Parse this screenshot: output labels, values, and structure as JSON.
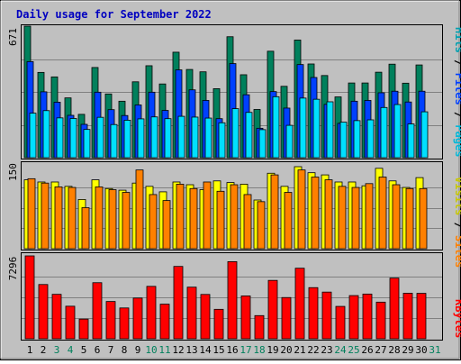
{
  "chart_data": [
    {
      "type": "bar",
      "panel": "pages_files_hits",
      "title": "Daily usage for September 2022",
      "ylabel_parts": [
        "Pages",
        " / ",
        "Files",
        " / ",
        "Hits"
      ],
      "ymax_label": "671",
      "ylim": [
        0,
        671
      ],
      "categories": [
        "1",
        "2",
        "3",
        "4",
        "5",
        "6",
        "7",
        "8",
        "9",
        "10",
        "11",
        "12",
        "13",
        "14",
        "15",
        "16",
        "17",
        "18",
        "19",
        "20",
        "21",
        "22",
        "23",
        "24",
        "25",
        "26",
        "27",
        "28",
        "29",
        "30",
        "31"
      ],
      "weekend_days": [
        3,
        4,
        10,
        11,
        17,
        18,
        24,
        25,
        31
      ],
      "series": [
        {
          "name": "Hits",
          "color": "#00805c",
          "values": [
            671,
            435,
            412,
            305,
            221,
            460,
            325,
            288,
            387,
            469,
            376,
            538,
            450,
            438,
            352,
            617,
            423,
            246,
            543,
            364,
            600,
            478,
            419,
            310,
            381,
            381,
            436,
            477,
            380,
            473,
            0
          ]
        },
        {
          "name": "Files",
          "color": "#0040ff",
          "values": [
            490,
            336,
            283,
            216,
            170,
            334,
            245,
            215,
            269,
            334,
            241,
            448,
            346,
            292,
            199,
            480,
            321,
            150,
            337,
            253,
            475,
            409,
            272,
            175,
            288,
            292,
            331,
            339,
            284,
            339,
            0
          ]
        },
        {
          "name": "Pages",
          "color": "#00e0ff",
          "values": [
            227,
            240,
            203,
            200,
            144,
            206,
            169,
            191,
            198,
            208,
            199,
            211,
            207,
            202,
            178,
            250,
            231,
            143,
            311,
            165,
            304,
            298,
            285,
            181,
            189,
            193,
            256,
            271,
            172,
            234,
            0
          ]
        }
      ]
    },
    {
      "type": "bar",
      "panel": "visits_sites",
      "ylabel_parts": [
        "Sites",
        " / ",
        "Visits"
      ],
      "ymax_label": "150",
      "ylim": [
        0,
        150
      ],
      "series": [
        {
          "name": "Visits",
          "color": "#ffff00",
          "values": [
            126,
            122,
            122,
            114,
            90,
            126,
            110,
            107,
            120,
            114,
            104,
            122,
            117,
            108,
            124,
            121,
            118,
            89,
            138,
            114,
            150,
            139,
            135,
            122,
            122,
            115,
            147,
            124,
            112,
            130,
            0
          ]
        },
        {
          "name": "Sites",
          "color": "#ff8000",
          "values": [
            128,
            120,
            113,
            112,
            75,
            113,
            108,
            103,
            144,
            99,
            88,
            118,
            110,
            122,
            105,
            117,
            99,
            86,
            135,
            103,
            144,
            131,
            126,
            114,
            112,
            119,
            131,
            117,
            110,
            110,
            0
          ]
        }
      ]
    },
    {
      "type": "bar",
      "panel": "kbytes",
      "ylabel_parts": [
        "KBytes"
      ],
      "ymax_label": "7296",
      "ylim": [
        0,
        7296
      ],
      "series": [
        {
          "name": "KBytes",
          "color": "#ff0000",
          "values": [
            7296,
            4776,
            3912,
            2866,
            1732,
            4936,
            3282,
            2713,
            3585,
            4614,
            3047,
            6368,
            4544,
            3902,
            2592,
            6788,
            3775,
            2040,
            5140,
            3629,
            6211,
            4502,
            4110,
            2850,
            3802,
            3936,
            3225,
            5340,
            4010,
            3999,
            0
          ]
        }
      ]
    }
  ]
}
